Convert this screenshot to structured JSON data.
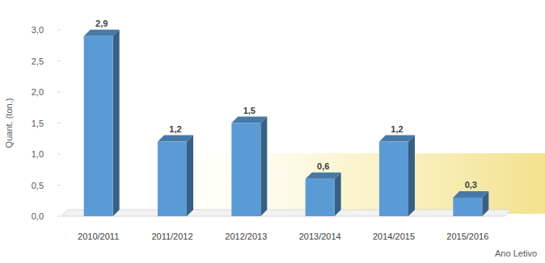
{
  "chart_data": {
    "type": "bar",
    "y_label": "Quant. (ton.)",
    "x_label": "Ano Letivo",
    "categories": [
      "2010/2011",
      "2011/2012",
      "2012/2013",
      "2013/2014",
      "2014/2015",
      "2015/2016"
    ],
    "values": [
      2.9,
      1.2,
      1.5,
      0.6,
      1.2,
      0.3
    ],
    "value_labels": [
      "2,9",
      "1,2",
      "1,5",
      "0,6",
      "1,2",
      "0,3"
    ],
    "data_labels": true,
    "color": "#5b9bd5",
    "ylim": [
      0,
      3
    ],
    "yticks": [
      {
        "value": 0,
        "label": "0,0"
      },
      {
        "value": 0.5,
        "label": "0,5"
      },
      {
        "value": 1,
        "label": "1,0"
      },
      {
        "value": 1.5,
        "label": "1,5"
      },
      {
        "value": 2,
        "label": "2,0"
      },
      {
        "value": 2.5,
        "label": "2,5"
      },
      {
        "value": 3,
        "label": "3,0"
      }
    ],
    "grid": false
  }
}
